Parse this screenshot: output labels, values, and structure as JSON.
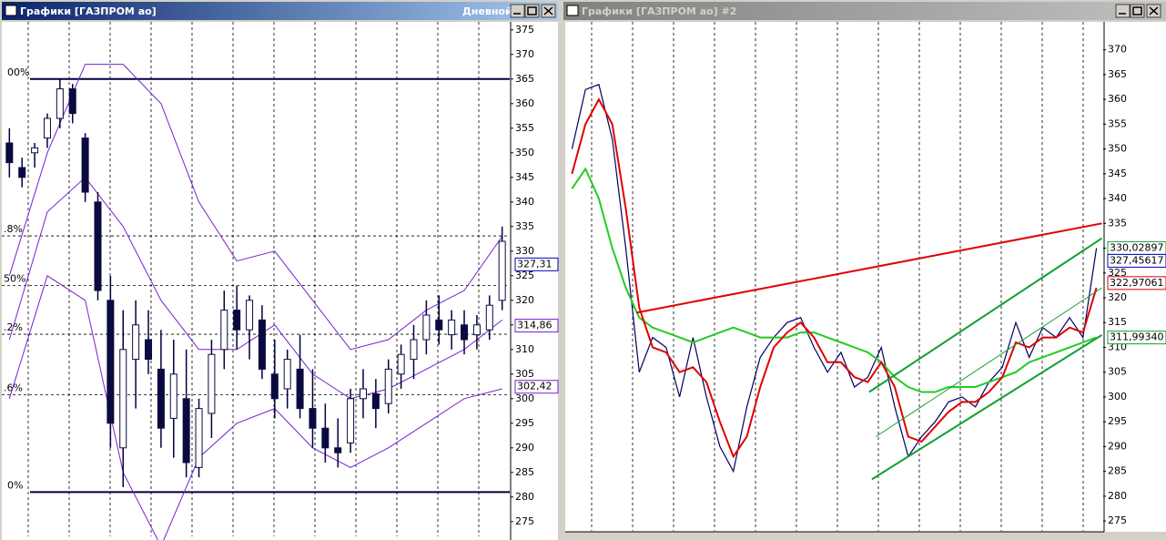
{
  "windows": [
    {
      "title": "Графики [ГАЗПРОМ ао]",
      "timeframe": "Дневной"
    },
    {
      "title": "Графики [ГАЗПРОМ ао] #2"
    }
  ],
  "chart_data": [
    {
      "type": "candlestick",
      "x": [
        0,
        1,
        2,
        3,
        4,
        5,
        6,
        7,
        8,
        9,
        10,
        11,
        12,
        13,
        14,
        15,
        16,
        17,
        18,
        19,
        20,
        21,
        22,
        23,
        24,
        25,
        26,
        27,
        28,
        29,
        30,
        31,
        32,
        33,
        34,
        35,
        36,
        37,
        38,
        39
      ],
      "xlim": [
        -0.6,
        39.6
      ],
      "open": [
        352,
        347,
        350,
        353,
        357,
        363,
        353,
        340,
        320,
        290,
        308,
        312,
        306,
        296,
        300,
        286,
        297,
        310,
        318,
        314,
        316,
        305,
        302,
        306,
        298,
        294,
        290,
        291,
        300,
        301,
        299,
        305,
        308,
        312,
        316,
        313,
        315,
        313,
        314,
        320
      ],
      "high": [
        355,
        349,
        352,
        358,
        365,
        364,
        354,
        342,
        325,
        318,
        320,
        318,
        314,
        312,
        310,
        300,
        312,
        322,
        323,
        321,
        319,
        312,
        310,
        313,
        306,
        299,
        296,
        302,
        306,
        304,
        308,
        311,
        315,
        320,
        321,
        318,
        318,
        317,
        321,
        335
      ],
      "low": [
        345,
        343,
        347,
        351,
        355,
        356,
        340,
        320,
        290,
        282,
        298,
        305,
        290,
        288,
        284,
        284,
        292,
        306,
        310,
        308,
        304,
        296,
        298,
        296,
        290,
        287,
        286,
        289,
        296,
        294,
        297,
        302,
        304,
        309,
        311,
        310,
        309,
        310,
        312,
        318
      ],
      "close": [
        348,
        345,
        351,
        357,
        363,
        358,
        342,
        322,
        295,
        310,
        315,
        308,
        294,
        305,
        287,
        298,
        309,
        318,
        314,
        320,
        306,
        300,
        308,
        298,
        294,
        290,
        289,
        300,
        302,
        298,
        306,
        309,
        312,
        317,
        314,
        316,
        312,
        315,
        319,
        332
      ],
      "bands": {
        "x": [
          0,
          3,
          6,
          9,
          12,
          15,
          18,
          21,
          24,
          27,
          30,
          33,
          36,
          39
        ],
        "series": [
          {
            "color": "#7a1fd0",
            "values": [
              325,
              350,
              368,
              368,
              360,
              340,
              328,
              330,
              320,
              310,
              312,
              318,
              322,
              333
            ]
          },
          {
            "color": "#7a1fd0",
            "values": [
              312,
              338,
              345,
              335,
              320,
              310,
              310,
              315,
              305,
              300,
              302,
              306,
              310,
              316
            ]
          },
          {
            "color": "#7a1fd0",
            "values": [
              300,
              325,
              320,
              285,
              270,
              288,
              295,
              298,
              290,
              286,
              290,
              295,
              300,
              302
            ]
          }
        ]
      },
      "levels": [
        {
          "label": "00%",
          "value": 365
        },
        {
          "label": ".8%",
          "value": 333.1
        },
        {
          "label": "50%",
          "value": 323
        },
        {
          "label": ".2%",
          "value": 313.1
        },
        {
          "label": ".6%",
          "value": 300.8
        },
        {
          "label": "0%",
          "value": 281
        }
      ],
      "ylim": [
        272,
        377
      ],
      "yticks": [
        275,
        280,
        285,
        290,
        295,
        300,
        305,
        310,
        315,
        320,
        325,
        330,
        335,
        340,
        345,
        350,
        355,
        360,
        365,
        370,
        375
      ],
      "price_labels": [
        {
          "value": 327.31,
          "label": "327,31",
          "color": "#0000c0"
        },
        {
          "value": 314.86,
          "label": "314,86",
          "color": "#7a1fd0"
        },
        {
          "value": 302.42,
          "label": "302,42",
          "color": "#7a1fd0"
        }
      ]
    },
    {
      "type": "line",
      "x": [
        0,
        1,
        2,
        3,
        4,
        5,
        6,
        7,
        8,
        9,
        10,
        11,
        12,
        13,
        14,
        15,
        16,
        17,
        18,
        19,
        20,
        21,
        22,
        23,
        24,
        25,
        26,
        27,
        28,
        29,
        30,
        31,
        32,
        33,
        34,
        35,
        36,
        37,
        38,
        39
      ],
      "xlim": [
        -0.5,
        39.5
      ],
      "series": [
        {
          "color": "#000060",
          "values": [
            350,
            362,
            363,
            352,
            330,
            305,
            312,
            310,
            300,
            312,
            300,
            290,
            285,
            298,
            308,
            312,
            315,
            316,
            310,
            305,
            309,
            302,
            304,
            310,
            298,
            288,
            292,
            295,
            299,
            300,
            298,
            303,
            306,
            315,
            308,
            314,
            312,
            316,
            312,
            330
          ]
        },
        {
          "color": "#22cc22",
          "values": [
            342,
            346,
            340,
            330,
            322,
            316,
            314,
            313,
            312,
            311,
            312,
            313,
            314,
            313,
            312,
            312,
            312,
            313,
            313,
            312,
            311,
            310,
            309,
            307,
            304,
            302,
            301,
            301,
            302,
            302,
            302,
            303,
            304,
            305,
            307,
            308,
            309,
            310,
            311,
            312
          ]
        },
        {
          "color": "#e00000",
          "values": [
            345,
            355,
            360,
            355,
            338,
            318,
            310,
            309,
            305,
            306,
            303,
            295,
            288,
            292,
            302,
            310,
            313,
            315,
            312,
            307,
            307,
            304,
            303,
            307,
            302,
            292,
            291,
            294,
            297,
            299,
            299,
            301,
            304,
            311,
            310,
            312,
            312,
            314,
            313,
            322
          ]
        }
      ],
      "trendlines": [
        {
          "color": "#e00000",
          "x0": 4.8,
          "y0": 317,
          "x1": 39.4,
          "y1": 335
        },
        {
          "color": "#10a030",
          "x0": 22.1,
          "y0": 301,
          "x1": 39.4,
          "y1": 332
        },
        {
          "color": "#10a030",
          "x0": 22.3,
          "y0": 283.4,
          "x1": 39.4,
          "y1": 312.5
        },
        {
          "color": "#10a030",
          "x0": 22.6,
          "y0": 292,
          "x1": 39.4,
          "y1": 322
        }
      ],
      "ylim": [
        273,
        376
      ],
      "yticks": [
        275,
        280,
        285,
        290,
        295,
        300,
        305,
        310,
        315,
        320,
        325,
        330,
        335,
        340,
        345,
        350,
        355,
        360,
        365,
        370
      ],
      "price_labels": [
        {
          "value": 330.02897,
          "label": "330,02897",
          "color": "#10a030"
        },
        {
          "value": 327.45617,
          "label": "327,45617",
          "color": "#0000c0"
        },
        {
          "value": 322.97061,
          "label": "322,97061",
          "color": "#e00000"
        },
        {
          "value": 311.9934,
          "label": "311,99340",
          "color": "#10a030"
        }
      ]
    }
  ]
}
